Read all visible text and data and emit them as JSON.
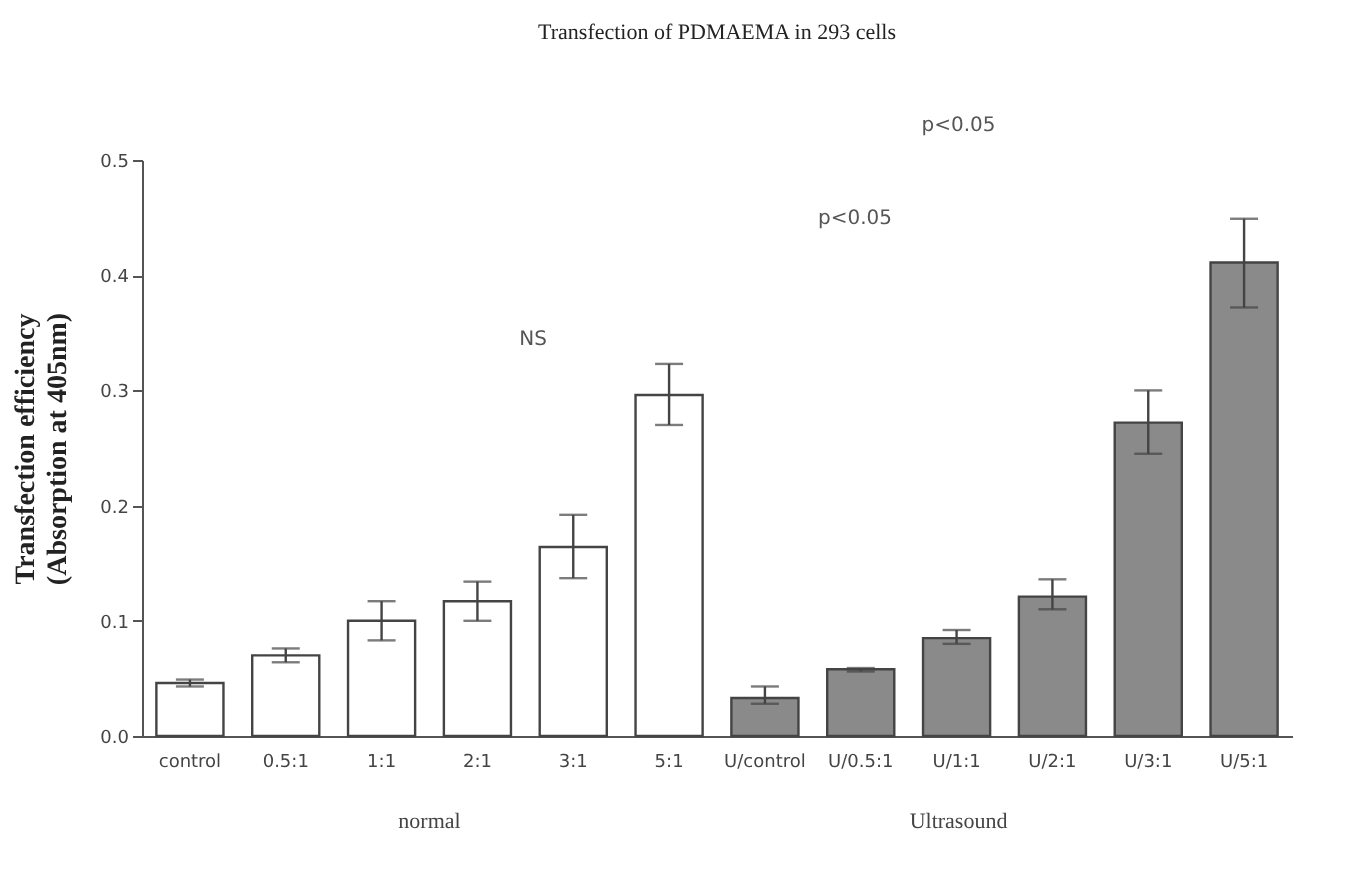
{
  "chart_data": {
    "type": "bar",
    "title": "Transfection of PDMAEMA in 293 cells",
    "ylabel": "Transfection efficiency\n(Absorption at 405nm)",
    "categories": [
      "control",
      "0.5:1",
      "1:1",
      "2:1",
      "3:1",
      "5:1",
      "U/control",
      "U/0.5:1",
      "U/1:1",
      "U/2:1",
      "U/3:1",
      "U/5:1"
    ],
    "series": [
      {
        "color": "#ffffff",
        "values": [
          0.046,
          0.07,
          0.1,
          0.117,
          0.164,
          0.296,
          null,
          null,
          null,
          null,
          null,
          null
        ],
        "errors": [
          [
            0.043,
            0.049
          ],
          [
            0.064,
            0.076
          ],
          [
            0.083,
            0.117
          ],
          [
            0.1,
            0.134
          ],
          [
            0.137,
            0.192
          ],
          [
            0.27,
            0.323
          ],
          null,
          null,
          null,
          null,
          null,
          null
        ]
      },
      {
        "color": "#8a8a8a",
        "values": [
          null,
          null,
          null,
          null,
          null,
          null,
          0.033,
          0.058,
          0.085,
          0.121,
          0.272,
          0.411
        ],
        "errors": [
          null,
          null,
          null,
          null,
          null,
          null,
          [
            0.028,
            0.043
          ],
          [
            0.056,
            0.059
          ],
          [
            0.08,
            0.092
          ],
          [
            0.11,
            0.136
          ],
          [
            0.245,
            0.3
          ],
          [
            0.372,
            0.449
          ]
        ]
      }
    ],
    "ylim": [
      0,
      0.5
    ],
    "yticks": [
      {
        "value": 0,
        "label": "0.0"
      },
      0.1,
      0.2,
      0.3,
      0.4,
      0.5
    ],
    "grid": false,
    "legend": false,
    "annotations": [
      "NS",
      "p<0.05",
      "p<0.05",
      "normal",
      "Ultrasound"
    ]
  }
}
